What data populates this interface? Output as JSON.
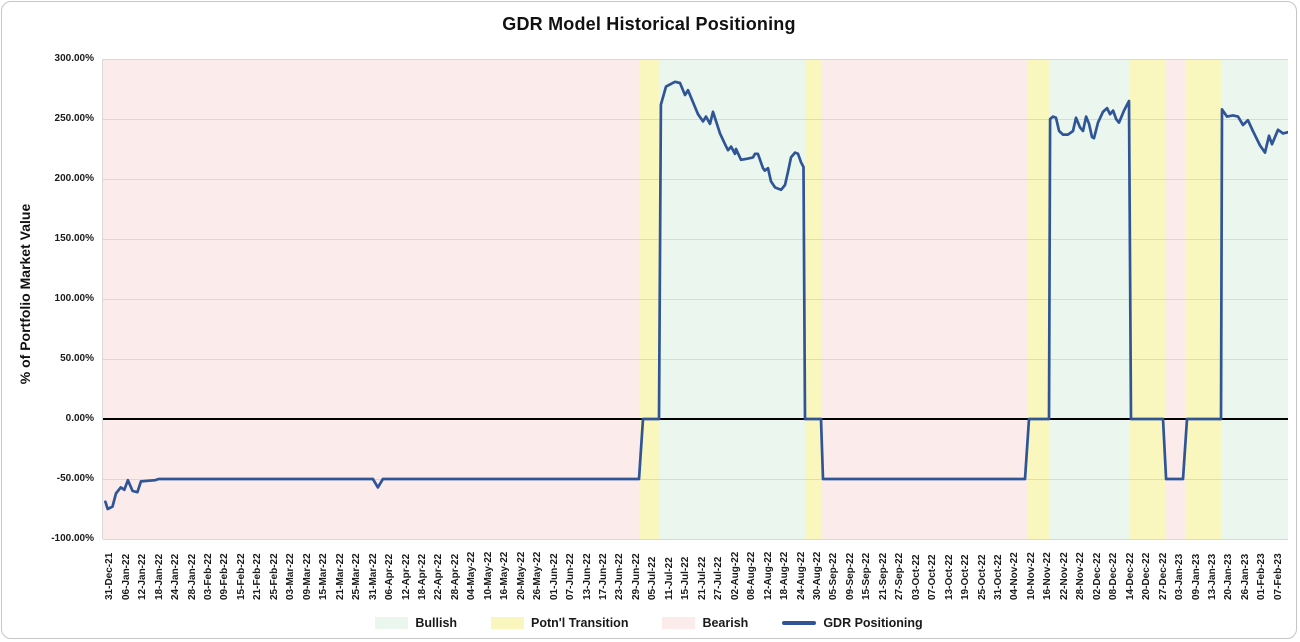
{
  "colors": {
    "bullish": "#eaf6ee",
    "transition": "#faf7be",
    "bearish": "#fbeceb",
    "line": "#2f5597",
    "gridline": "#d9d9d9",
    "zero_line": "#000000",
    "text": "#1a1a1a"
  },
  "chart_data": {
    "type": "line",
    "title": "GDR Model Historical Positioning",
    "xlabel": "",
    "ylabel": "% of Portfolio Market Value",
    "ylim": [
      -100,
      300
    ],
    "grid": "horizontal",
    "legend_position": "bottom",
    "y_ticks": [
      {
        "value": 300,
        "label": "300.00%"
      },
      {
        "value": 250,
        "label": "250.00%"
      },
      {
        "value": 200,
        "label": "200.00%"
      },
      {
        "value": 150,
        "label": "150.00%"
      },
      {
        "value": 100,
        "label": "100.00%"
      },
      {
        "value": 50,
        "label": "50.00%"
      },
      {
        "value": 0,
        "label": "0.00%"
      },
      {
        "value": -50,
        "label": "-50.00%"
      },
      {
        "value": -100,
        "label": "-100.00%"
      }
    ],
    "x_tick_labels": [
      "31-Dec-21",
      "06-Jan-22",
      "12-Jan-22",
      "18-Jan-22",
      "24-Jan-22",
      "28-Jan-22",
      "03-Feb-22",
      "09-Feb-22",
      "15-Feb-22",
      "21-Feb-22",
      "25-Feb-22",
      "03-Mar-22",
      "09-Mar-22",
      "15-Mar-22",
      "21-Mar-22",
      "25-Mar-22",
      "31-Mar-22",
      "06-Apr-22",
      "12-Apr-22",
      "18-Apr-22",
      "22-Apr-22",
      "28-Apr-22",
      "04-May-22",
      "10-May-22",
      "16-May-22",
      "20-May-22",
      "26-May-22",
      "01-Jun-22",
      "07-Jun-22",
      "13-Jun-22",
      "17-Jun-22",
      "23-Jun-22",
      "29-Jun-22",
      "05-Jul-22",
      "11-Jul-22",
      "15-Jul-22",
      "21-Jul-22",
      "27-Jul-22",
      "02-Aug-22",
      "08-Aug-22",
      "12-Aug-22",
      "18-Aug-22",
      "24-Aug-22",
      "30-Aug-22",
      "05-Sep-22",
      "09-Sep-22",
      "15-Sep-22",
      "21-Sep-22",
      "27-Sep-22",
      "03-Oct-22",
      "07-Oct-22",
      "13-Oct-22",
      "19-Oct-22",
      "25-Oct-22",
      "31-Oct-22",
      "04-Nov-22",
      "10-Nov-22",
      "16-Nov-22",
      "22-Nov-22",
      "28-Nov-22",
      "02-Dec-22",
      "08-Dec-22",
      "14-Dec-22",
      "20-Dec-22",
      "27-Dec-22",
      "03-Jan-23",
      "09-Jan-23",
      "13-Jan-23",
      "20-Jan-23",
      "26-Jan-23",
      "01-Feb-23",
      "07-Feb-23"
    ],
    "regions": [
      {
        "label": "Bearish",
        "color_key": "bearish",
        "x0": 0.0,
        "x1": 0.4532
      },
      {
        "label": "Potn'l Transition",
        "color_key": "transition",
        "x0": 0.4532,
        "x1": 0.47
      },
      {
        "label": "Bullish",
        "color_key": "bullish",
        "x0": 0.47,
        "x1": 0.5924
      },
      {
        "label": "Potn'l Transition",
        "color_key": "transition",
        "x0": 0.5924,
        "x1": 0.6059
      },
      {
        "label": "Bearish",
        "color_key": "bearish",
        "x0": 0.6059,
        "x1": 0.7806
      },
      {
        "label": "Potn'l Transition",
        "color_key": "transition",
        "x0": 0.7806,
        "x1": 0.7983
      },
      {
        "label": "Bullish",
        "color_key": "bullish",
        "x0": 0.7983,
        "x1": 0.8667
      },
      {
        "label": "Potn'l Transition",
        "color_key": "transition",
        "x0": 0.8667,
        "x1": 0.8971
      },
      {
        "label": "Bearish",
        "color_key": "bearish",
        "x0": 0.8971,
        "x1": 0.9131
      },
      {
        "label": "Potn'l Transition",
        "color_key": "transition",
        "x0": 0.9131,
        "x1": 0.9435
      },
      {
        "label": "Bullish",
        "color_key": "bullish",
        "x0": 0.9435,
        "x1": 1.0
      }
    ],
    "series": [
      {
        "name": "GDR Positioning",
        "color": "#2f5597",
        "points_format": "[x_fraction_of_axis, percent_value]",
        "points": [
          [
            0.002,
            -69
          ],
          [
            0.004,
            -75
          ],
          [
            0.008,
            -73
          ],
          [
            0.011,
            -62
          ],
          [
            0.015,
            -57
          ],
          [
            0.018,
            -59
          ],
          [
            0.021,
            -51
          ],
          [
            0.025,
            -60
          ],
          [
            0.029,
            -61
          ],
          [
            0.032,
            -52
          ],
          [
            0.044,
            -51
          ],
          [
            0.047,
            -50
          ],
          [
            0.2278,
            -50
          ],
          [
            0.232,
            -57
          ],
          [
            0.2362,
            -50
          ],
          [
            0.4523,
            -50
          ],
          [
            0.4557,
            0
          ],
          [
            0.4692,
            0
          ],
          [
            0.4708,
            262
          ],
          [
            0.4751,
            277
          ],
          [
            0.4827,
            281
          ],
          [
            0.4869,
            280
          ],
          [
            0.4911,
            270
          ],
          [
            0.4937,
            274
          ],
          [
            0.4996,
            260
          ],
          [
            0.5021,
            254
          ],
          [
            0.5063,
            248
          ],
          [
            0.5089,
            252
          ],
          [
            0.5122,
            246
          ],
          [
            0.5148,
            256
          ],
          [
            0.5207,
            238
          ],
          [
            0.5249,
            229
          ],
          [
            0.5274,
            224
          ],
          [
            0.53,
            227
          ],
          [
            0.5333,
            221
          ],
          [
            0.5342,
            225
          ],
          [
            0.5384,
            216
          ],
          [
            0.5443,
            217
          ],
          [
            0.5485,
            218
          ],
          [
            0.5502,
            221
          ],
          [
            0.5527,
            221
          ],
          [
            0.557,
            209
          ],
          [
            0.5586,
            207
          ],
          [
            0.5612,
            209
          ],
          [
            0.5637,
            198
          ],
          [
            0.5671,
            193
          ],
          [
            0.5696,
            192
          ],
          [
            0.5722,
            191
          ],
          [
            0.5755,
            195
          ],
          [
            0.5781,
            206
          ],
          [
            0.5806,
            218
          ],
          [
            0.584,
            222
          ],
          [
            0.5865,
            221
          ],
          [
            0.589,
            214
          ],
          [
            0.5911,
            210
          ],
          [
            0.5924,
            0
          ],
          [
            0.6059,
            0
          ],
          [
            0.6076,
            -50
          ],
          [
            0.7781,
            -50
          ],
          [
            0.7814,
            0
          ],
          [
            0.7983,
            0
          ],
          [
            0.7992,
            250
          ],
          [
            0.8017,
            252
          ],
          [
            0.8042,
            251
          ],
          [
            0.8068,
            240
          ],
          [
            0.8101,
            237
          ],
          [
            0.8143,
            237
          ],
          [
            0.8186,
            240
          ],
          [
            0.8211,
            251
          ],
          [
            0.8245,
            243
          ],
          [
            0.827,
            240
          ],
          [
            0.8296,
            252
          ],
          [
            0.8321,
            246
          ],
          [
            0.8346,
            235
          ],
          [
            0.8363,
            234
          ],
          [
            0.8397,
            247
          ],
          [
            0.8439,
            256
          ],
          [
            0.8473,
            259
          ],
          [
            0.8498,
            254
          ],
          [
            0.8524,
            257
          ],
          [
            0.8549,
            250
          ],
          [
            0.8574,
            247
          ],
          [
            0.8616,
            257
          ],
          [
            0.8658,
            265
          ],
          [
            0.8675,
            0
          ],
          [
            0.8945,
            0
          ],
          [
            0.8971,
            -50
          ],
          [
            0.9114,
            -50
          ],
          [
            0.9148,
            0
          ],
          [
            0.9435,
            0
          ],
          [
            0.9443,
            258
          ],
          [
            0.9485,
            252
          ],
          [
            0.9536,
            253
          ],
          [
            0.9578,
            252
          ],
          [
            0.962,
            245
          ],
          [
            0.9662,
            249
          ],
          [
            0.9704,
            240
          ],
          [
            0.9764,
            228
          ],
          [
            0.9806,
            222
          ],
          [
            0.984,
            236
          ],
          [
            0.9865,
            229
          ],
          [
            0.9916,
            241
          ],
          [
            0.9958,
            238
          ],
          [
            1.0,
            239
          ]
        ]
      }
    ],
    "legend": [
      {
        "label": "Bullish",
        "type": "area",
        "color_key": "bullish"
      },
      {
        "label": "Potn'l Transition",
        "type": "area",
        "color_key": "transition"
      },
      {
        "label": "Bearish",
        "type": "area",
        "color_key": "bearish"
      },
      {
        "label": "GDR Positioning",
        "type": "line",
        "color_key": "line"
      }
    ]
  }
}
